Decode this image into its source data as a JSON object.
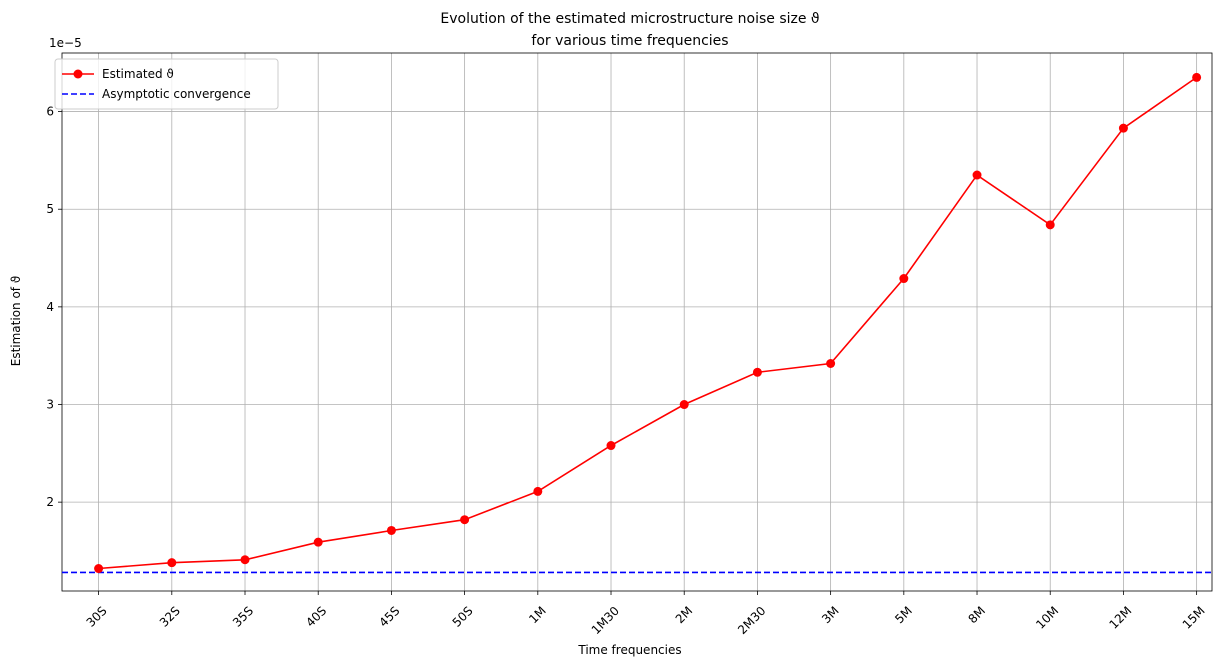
{
  "chart_data": {
    "type": "line",
    "title": "Evolution of the estimated microstructure noise size ϑ",
    "subtitle": "for various time frequencies",
    "xlabel": "Time frequencies",
    "ylabel": "Estimation of ϑ",
    "y_offset_label": "1e−5",
    "categories": [
      "30S",
      "32S",
      "35S",
      "40S",
      "45S",
      "50S",
      "1M",
      "1M30",
      "2M",
      "2M30",
      "3M",
      "5M",
      "8M",
      "10M",
      "12M",
      "15M"
    ],
    "y_ticks": [
      "2",
      "3",
      "4",
      "5",
      "6"
    ],
    "ylim": [
      1.09e-05,
      6.6e-05
    ],
    "grid": true,
    "legend_position": "top-left",
    "series": [
      {
        "name": "Estimated ϑ",
        "style": "solid line with circle markers",
        "color": "#ff0000",
        "values": [
          1.32e-05,
          1.38e-05,
          1.41e-05,
          1.59e-05,
          1.71e-05,
          1.82e-05,
          2.11e-05,
          2.58e-05,
          3e-05,
          3.33e-05,
          3.42e-05,
          4.29e-05,
          5.35e-05,
          4.84e-05,
          5.83e-05,
          6.35e-05
        ]
      },
      {
        "name": "Asymptotic convergence",
        "style": "dashed horizontal line",
        "color": "#0000ff",
        "value": 1.28e-05
      }
    ]
  }
}
